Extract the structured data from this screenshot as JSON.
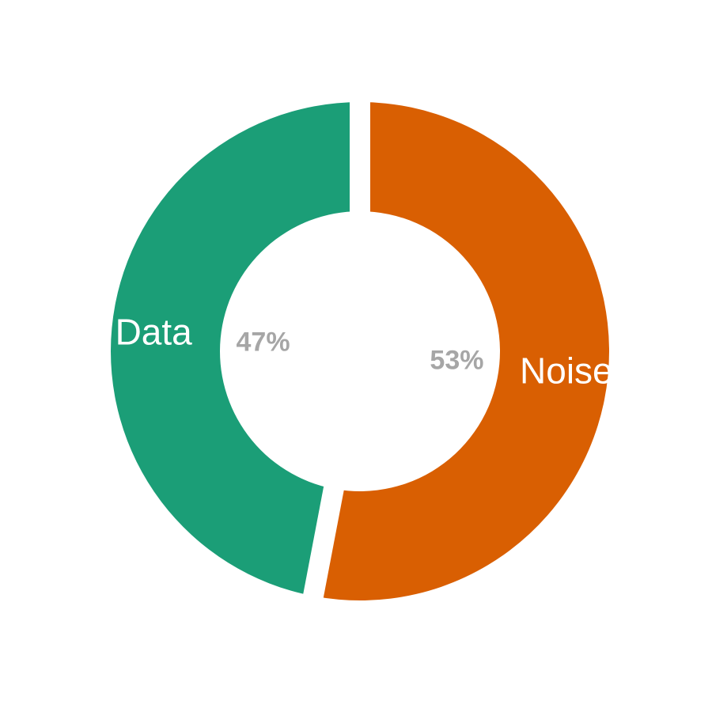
{
  "chart_data": {
    "type": "pie",
    "variant": "donut",
    "title": "",
    "legend": "none",
    "slices": [
      {
        "label": "Data",
        "value": 47,
        "percent_label": "47%",
        "color": "#1b9e77"
      },
      {
        "label": "Noise",
        "value": 53,
        "percent_label": "53%",
        "color": "#d95f02"
      }
    ]
  }
}
